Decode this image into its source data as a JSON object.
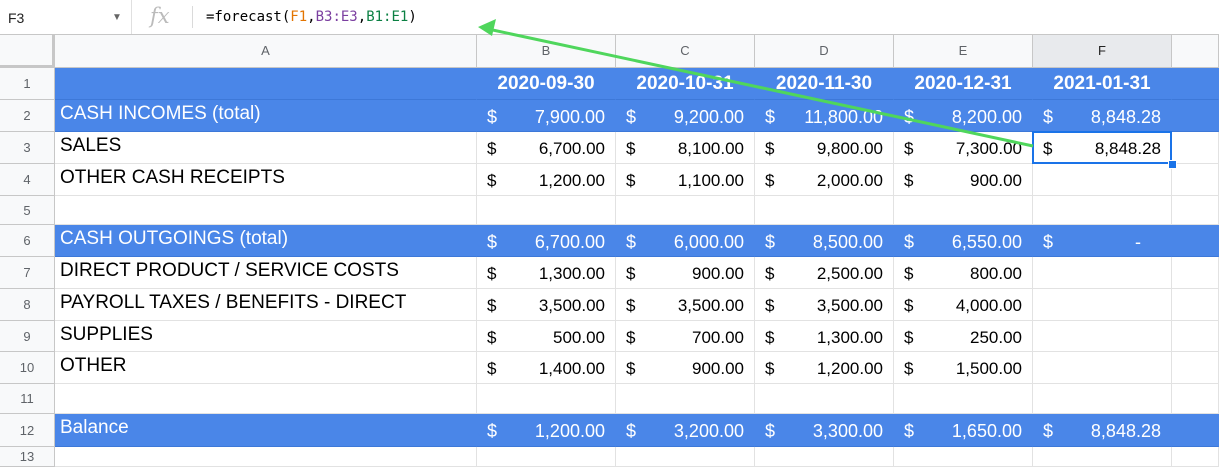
{
  "formula_bar": {
    "cell_ref": "F3",
    "fx_label": "fx",
    "formula": {
      "prefix": "=forecast(",
      "ref1": "F1",
      "sep1": ",",
      "ref2": "B3:E3",
      "sep2": ",",
      "ref3": "B1:E1",
      "suffix": ")"
    }
  },
  "selected_column": "F",
  "selected_cell": {
    "col": 5,
    "row": 3
  },
  "columns": [
    "A",
    "B",
    "C",
    "D",
    "E",
    "F"
  ],
  "rows": [
    {
      "num": "1",
      "style": "header",
      "label": "",
      "cells": [
        "2020-09-30",
        "2020-10-31",
        "2020-11-30",
        "2020-12-31",
        "2021-01-31"
      ]
    },
    {
      "num": "2",
      "style": "blue",
      "label": "CASH INCOMES (total)",
      "cells": [
        [
          "$",
          "7,900.00"
        ],
        [
          "$",
          "9,200.00"
        ],
        [
          "$",
          "11,800.00"
        ],
        [
          "$",
          "8,200.00"
        ],
        [
          "$",
          "8,848.28"
        ]
      ]
    },
    {
      "num": "3",
      "style": "plain",
      "label": "SALES",
      "cells": [
        [
          "$",
          "6,700.00"
        ],
        [
          "$",
          "8,100.00"
        ],
        [
          "$",
          "9,800.00"
        ],
        [
          "$",
          "7,300.00"
        ],
        [
          "$",
          "8,848.28"
        ]
      ]
    },
    {
      "num": "4",
      "style": "plain",
      "label": "OTHER CASH RECEIPTS",
      "cells": [
        [
          "$",
          "1,200.00"
        ],
        [
          "$",
          "1,100.00"
        ],
        [
          "$",
          "2,000.00"
        ],
        [
          "$",
          "900.00"
        ],
        null
      ]
    },
    {
      "num": "5",
      "style": "plain",
      "label": "",
      "cells": [
        null,
        null,
        null,
        null,
        null
      ]
    },
    {
      "num": "6",
      "style": "blue",
      "label": "CASH OUTGOINGS (total)",
      "cells": [
        [
          "$",
          "6,700.00"
        ],
        [
          "$",
          "6,000.00"
        ],
        [
          "$",
          "8,500.00"
        ],
        [
          "$",
          "6,550.00"
        ],
        [
          "$",
          "-"
        ]
      ]
    },
    {
      "num": "7",
      "style": "plain",
      "label": "DIRECT PRODUCT / SERVICE COSTS",
      "cells": [
        [
          "$",
          "1,300.00"
        ],
        [
          "$",
          "900.00"
        ],
        [
          "$",
          "2,500.00"
        ],
        [
          "$",
          "800.00"
        ],
        null
      ]
    },
    {
      "num": "8",
      "style": "plain",
      "label": "PAYROLL TAXES / BENEFITS - DIRECT",
      "cells": [
        [
          "$",
          "3,500.00"
        ],
        [
          "$",
          "3,500.00"
        ],
        [
          "$",
          "3,500.00"
        ],
        [
          "$",
          "4,000.00"
        ],
        null
      ]
    },
    {
      "num": "9",
      "style": "plain",
      "label": "SUPPLIES",
      "cells": [
        [
          "$",
          "500.00"
        ],
        [
          "$",
          "700.00"
        ],
        [
          "$",
          "1,300.00"
        ],
        [
          "$",
          "250.00"
        ],
        null
      ]
    },
    {
      "num": "10",
      "style": "plain",
      "label": "OTHER",
      "cells": [
        [
          "$",
          "1,400.00"
        ],
        [
          "$",
          "900.00"
        ],
        [
          "$",
          "1,200.00"
        ],
        [
          "$",
          "1,500.00"
        ],
        null
      ]
    },
    {
      "num": "11",
      "style": "plain",
      "label": "",
      "cells": [
        null,
        null,
        null,
        null,
        null
      ]
    },
    {
      "num": "12",
      "style": "blue",
      "label": "Balance",
      "cells": [
        [
          "$",
          "1,200.00"
        ],
        [
          "$",
          "3,200.00"
        ],
        [
          "$",
          "3,300.00"
        ],
        [
          "$",
          "1,650.00"
        ],
        [
          "$",
          "8,848.28"
        ]
      ]
    },
    {
      "num": "13",
      "style": "plain",
      "label": "",
      "cells": [
        null,
        null,
        null,
        null,
        null
      ]
    }
  ],
  "colors": {
    "header_blue": "#4a86e8",
    "selection": "#1a73e8",
    "arrow": "#4fd65c"
  }
}
